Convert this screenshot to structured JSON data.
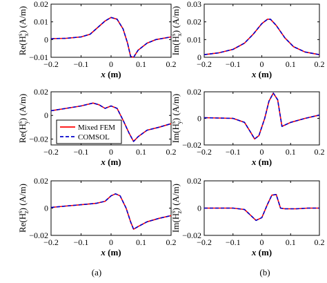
{
  "figure": {
    "caption_a": "(a)",
    "caption_b": "(b)"
  },
  "legend": {
    "entries": [
      {
        "label": "Mixed FEM",
        "color": "#ff0000",
        "style": "solid"
      },
      {
        "label": "COMSOL",
        "color": "#0000cc",
        "style": "dashed"
      }
    ]
  },
  "chart_data": [
    {
      "type": "line",
      "id": "re_hx",
      "ylabel": {
        "pre": "Re(H",
        "sup": "s",
        "sub": "x",
        "post": ") (A/m)"
      },
      "xlabel": {
        "var": "x",
        "unit": " (m)"
      },
      "xlim": [
        -0.2,
        0.2
      ],
      "ylim": [
        -0.01,
        0.02
      ],
      "xticks": [
        -0.2,
        -0.1,
        0,
        0.1,
        0.2
      ],
      "xticklabels": [
        "−0.2",
        "−0.1",
        "0",
        "0.1",
        "0.2"
      ],
      "yticks": [
        -0.01,
        0,
        0.01,
        0.02
      ],
      "yticklabels": [
        "−0.01",
        "0",
        "0.01",
        "0.02"
      ],
      "x": [
        -0.2,
        -0.15,
        -0.1,
        -0.07,
        -0.04,
        -0.02,
        0,
        0.02,
        0.04,
        0.055,
        0.065,
        0.075,
        0.09,
        0.12,
        0.15,
        0.2
      ],
      "series": [
        {
          "name": "Mixed FEM",
          "values": [
            0.0005,
            0.0007,
            0.0015,
            0.003,
            0.0075,
            0.0105,
            0.0125,
            0.0115,
            0.006,
            -0.002,
            -0.0095,
            -0.01,
            -0.006,
            -0.002,
            0.0,
            0.0015
          ]
        },
        {
          "name": "COMSOL",
          "values": [
            0.0005,
            0.0007,
            0.0015,
            0.003,
            0.0075,
            0.0105,
            0.0125,
            0.0115,
            0.006,
            -0.002,
            -0.0095,
            -0.01,
            -0.006,
            -0.002,
            0.0,
            0.0015
          ]
        }
      ]
    },
    {
      "type": "line",
      "id": "im_hx",
      "ylabel": {
        "pre": "Im(H",
        "sup": "s",
        "sub": "x",
        "post": ") (A/m)"
      },
      "xlabel": {
        "var": "x",
        "unit": " (m)"
      },
      "xlim": [
        -0.2,
        0.2
      ],
      "ylim": [
        0,
        0.03
      ],
      "xticks": [
        -0.2,
        -0.1,
        0,
        0.1,
        0.2
      ],
      "xticklabels": [
        "−0.2",
        "−0.1",
        "0",
        "0.1",
        "0.2"
      ],
      "yticks": [
        0,
        0.01,
        0.02,
        0.03
      ],
      "yticklabels": [
        "0",
        "0.01",
        "0.02",
        "0.03"
      ],
      "x": [
        -0.2,
        -0.15,
        -0.1,
        -0.06,
        -0.03,
        0,
        0.02,
        0.03,
        0.05,
        0.08,
        0.11,
        0.15,
        0.2
      ],
      "series": [
        {
          "name": "Mixed FEM",
          "values": [
            0.0015,
            0.0025,
            0.0045,
            0.008,
            0.013,
            0.019,
            0.0215,
            0.0215,
            0.018,
            0.011,
            0.006,
            0.003,
            0.0015
          ]
        },
        {
          "name": "COMSOL",
          "values": [
            0.0015,
            0.0025,
            0.0045,
            0.008,
            0.013,
            0.019,
            0.0215,
            0.0215,
            0.018,
            0.011,
            0.006,
            0.003,
            0.0015
          ]
        }
      ]
    },
    {
      "type": "line",
      "id": "re_hy",
      "ylabel": {
        "pre": "Re(H",
        "sup": "s",
        "sub": "y",
        "post": ") (A/m)"
      },
      "xlabel": {
        "var": "x",
        "unit": " (m)"
      },
      "xlim": [
        -0.2,
        0.2
      ],
      "ylim": [
        -0.025,
        0.02
      ],
      "xticks": [
        -0.2,
        -0.1,
        0,
        0.1,
        0.2
      ],
      "xticklabels": [
        "−0.2",
        "−0.1",
        "0",
        "0.1",
        "0.2"
      ],
      "yticks": [
        -0.02,
        0,
        0.02
      ],
      "yticklabels": [
        "−0.02",
        "0",
        "0.02"
      ],
      "x": [
        -0.2,
        -0.15,
        -0.1,
        -0.06,
        -0.04,
        -0.02,
        0,
        0.02,
        0.04,
        0.06,
        0.075,
        0.09,
        0.12,
        0.16,
        0.2
      ],
      "series": [
        {
          "name": "Mixed FEM",
          "values": [
            0.004,
            0.006,
            0.008,
            0.0105,
            0.009,
            0.006,
            0.008,
            0.006,
            -0.004,
            -0.015,
            -0.022,
            -0.018,
            -0.0125,
            -0.01,
            -0.007
          ]
        },
        {
          "name": "COMSOL",
          "values": [
            0.004,
            0.006,
            0.008,
            0.0105,
            0.009,
            0.006,
            0.008,
            0.006,
            -0.004,
            -0.015,
            -0.022,
            -0.018,
            -0.0125,
            -0.01,
            -0.007
          ]
        }
      ]
    },
    {
      "type": "line",
      "id": "im_hy",
      "ylabel": {
        "pre": "Im(H",
        "sup": "s",
        "sub": "y",
        "post": ") (A/m)"
      },
      "xlabel": {
        "var": "x",
        "unit": " (m)"
      },
      "xlim": [
        -0.2,
        0.2
      ],
      "ylim": [
        -0.02,
        0.02
      ],
      "xticks": [
        -0.2,
        -0.1,
        0,
        0.1,
        0.2
      ],
      "xticklabels": [
        "−0.2",
        "−0.1",
        "0",
        "0.1",
        "0.2"
      ],
      "yticks": [
        -0.02,
        0,
        0.02
      ],
      "yticklabels": [
        "−0.02",
        "0",
        "0.02"
      ],
      "x": [
        -0.2,
        -0.1,
        -0.06,
        -0.04,
        -0.025,
        -0.01,
        0.01,
        0.025,
        0.04,
        0.055,
        0.07,
        0.1,
        0.15,
        0.2
      ],
      "series": [
        {
          "name": "Mixed FEM",
          "values": [
            0.0005,
            0.0,
            -0.003,
            -0.01,
            -0.0155,
            -0.013,
            0.0,
            0.013,
            0.019,
            0.014,
            -0.006,
            -0.003,
            0.0,
            0.0025
          ]
        },
        {
          "name": "COMSOL",
          "values": [
            0.0005,
            0.0,
            -0.003,
            -0.01,
            -0.0155,
            -0.013,
            0.0,
            0.013,
            0.019,
            0.014,
            -0.006,
            -0.003,
            0.0,
            0.0025
          ]
        }
      ]
    },
    {
      "type": "line",
      "id": "re_hz",
      "ylabel": {
        "pre": "Re(H",
        "sup": "s",
        "sub": "z",
        "post": ") (A/m)"
      },
      "xlabel": {
        "var": "x",
        "unit": " (m)"
      },
      "xlim": [
        -0.2,
        0.2
      ],
      "ylim": [
        -0.02,
        0.02
      ],
      "xticks": [
        -0.2,
        -0.1,
        0,
        0.1,
        0.2
      ],
      "xticklabels": [
        "−0.2",
        "−0.1",
        "0",
        "0.1",
        "0.2"
      ],
      "yticks": [
        -0.02,
        0,
        0.02
      ],
      "yticklabels": [
        "−0.02",
        "0",
        "0.02"
      ],
      "x": [
        -0.2,
        -0.15,
        -0.1,
        -0.05,
        -0.02,
        0,
        0.015,
        0.03,
        0.05,
        0.065,
        0.075,
        0.09,
        0.12,
        0.16,
        0.2
      ],
      "series": [
        {
          "name": "Mixed FEM",
          "values": [
            0.0005,
            0.0015,
            0.0025,
            0.0035,
            0.005,
            0.009,
            0.0105,
            0.009,
            0.0,
            -0.01,
            -0.0155,
            -0.0135,
            -0.01,
            -0.0075,
            -0.0055
          ]
        },
        {
          "name": "COMSOL",
          "values": [
            0.0005,
            0.0015,
            0.0025,
            0.0035,
            0.005,
            0.009,
            0.0105,
            0.009,
            0.0,
            -0.01,
            -0.0155,
            -0.0135,
            -0.01,
            -0.0075,
            -0.0055
          ]
        }
      ]
    },
    {
      "type": "line",
      "id": "im_hz",
      "ylabel": {
        "pre": "Im(H",
        "sup": "s",
        "sub": "z",
        "post": ") (A/m)"
      },
      "xlabel": {
        "var": "x",
        "unit": " (m)"
      },
      "xlim": [
        -0.2,
        0.2
      ],
      "ylim": [
        -0.02,
        0.02
      ],
      "xticks": [
        -0.2,
        -0.1,
        0,
        0.1,
        0.2
      ],
      "xticklabels": [
        "−0.2",
        "−0.1",
        "0",
        "0.1",
        "0.2"
      ],
      "yticks": [
        -0.02,
        0,
        0.02
      ],
      "yticklabels": [
        "−0.02",
        "0",
        "0.02"
      ],
      "x": [
        -0.2,
        -0.1,
        -0.06,
        -0.04,
        -0.02,
        0,
        0.02,
        0.035,
        0.05,
        0.065,
        0.08,
        0.12,
        0.16,
        0.2
      ],
      "series": [
        {
          "name": "Mixed FEM",
          "values": [
            0.0,
            0.0,
            -0.001,
            -0.005,
            -0.009,
            -0.007,
            0.003,
            0.0095,
            0.01,
            0.0,
            -0.0005,
            -0.0005,
            0.0,
            0.0
          ]
        },
        {
          "name": "COMSOL",
          "values": [
            0.0,
            0.0,
            -0.001,
            -0.005,
            -0.009,
            -0.007,
            0.003,
            0.0095,
            0.01,
            0.0,
            -0.0005,
            -0.0005,
            0.0,
            0.0
          ]
        }
      ]
    }
  ]
}
